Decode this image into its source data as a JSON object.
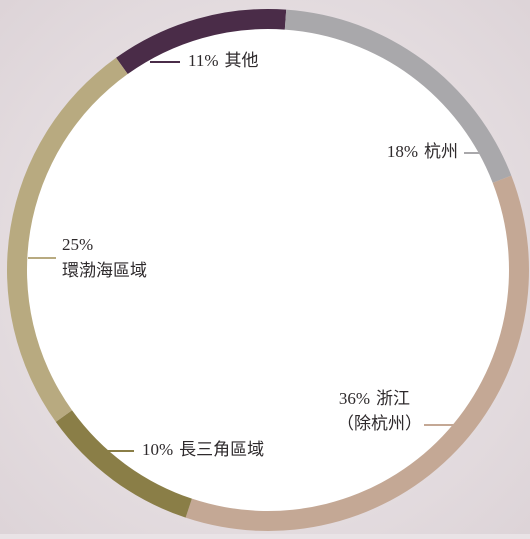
{
  "chart_data": {
    "type": "donut",
    "categories": [
      [
        "其他"
      ],
      [
        "杭州"
      ],
      [
        "浙江",
        "（除杭州）"
      ],
      [
        "長三角區域"
      ],
      [
        "環渤海區域"
      ]
    ],
    "values": [
      11,
      18,
      36,
      10,
      25
    ],
    "value_labels": [
      "11%",
      "18%",
      "36%",
      "10%",
      "25%"
    ],
    "colors": [
      "#4a2c48",
      "#a9a8ab",
      "#c4a895",
      "#8a7e47",
      "#b8aa80"
    ]
  }
}
